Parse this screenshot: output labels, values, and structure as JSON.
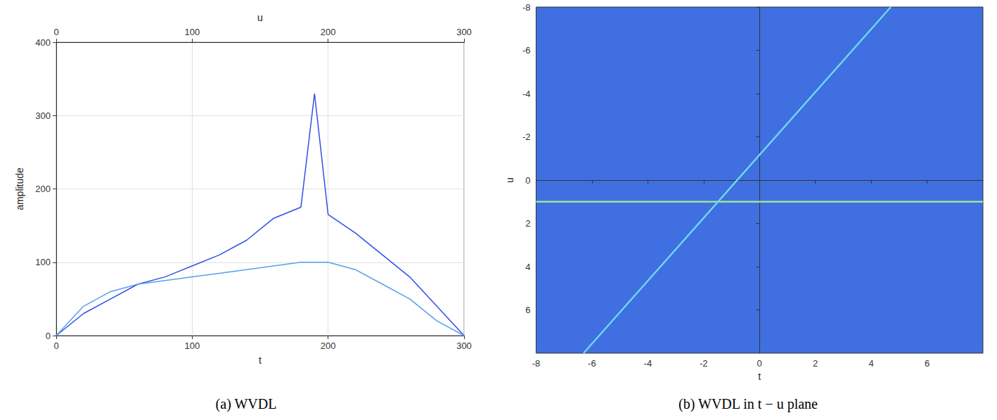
{
  "chart_data": [
    {
      "type": "line",
      "title": "(a) WVDL",
      "xlabel": "t",
      "x2label": "u",
      "ylabel": "amplitude",
      "xlim": [
        0,
        300
      ],
      "xticks": [
        0,
        100,
        200,
        300
      ],
      "x2lim": [
        0,
        300
      ],
      "x2ticks": [
        0,
        100,
        200,
        300
      ],
      "ylim": [
        0,
        400
      ],
      "yticks": [
        0,
        100,
        200,
        300,
        400
      ],
      "grid": true,
      "series": [
        {
          "axis": "x",
          "color": "#2f4fe8",
          "x": [
            0,
            20,
            40,
            60,
            80,
            100,
            120,
            140,
            160,
            180,
            190,
            200,
            220,
            240,
            260,
            280,
            300
          ],
          "values": [
            0,
            30,
            50,
            70,
            80,
            95,
            110,
            130,
            160,
            175,
            330,
            165,
            140,
            110,
            80,
            40,
            0
          ]
        },
        {
          "axis": "x2",
          "color": "#5aa0e8",
          "x": [
            0,
            20,
            40,
            60,
            80,
            100,
            120,
            140,
            160,
            180,
            200,
            220,
            240,
            260,
            280,
            300
          ],
          "values": [
            0,
            40,
            60,
            70,
            75,
            80,
            85,
            90,
            95,
            100,
            100,
            90,
            70,
            50,
            20,
            0
          ]
        }
      ]
    },
    {
      "type": "line",
      "title": "(b) WVDL in t − u plane",
      "xlabel": "t",
      "ylabel": "u",
      "xlim": [
        -8,
        8
      ],
      "xticks": [
        -8,
        -6,
        -4,
        -2,
        0,
        2,
        4,
        6
      ],
      "ylim": [
        -8,
        8
      ],
      "yticks": [
        -8,
        -6,
        -4,
        -2,
        0,
        2,
        4,
        6
      ],
      "series": [
        {
          "color": "#9be39a",
          "x": [
            -8,
            8
          ],
          "values": [
            1,
            1
          ]
        },
        {
          "color": "#6fd6ee",
          "x": [
            -6.3,
            4.7
          ],
          "values": [
            8,
            -8
          ]
        }
      ]
    }
  ]
}
